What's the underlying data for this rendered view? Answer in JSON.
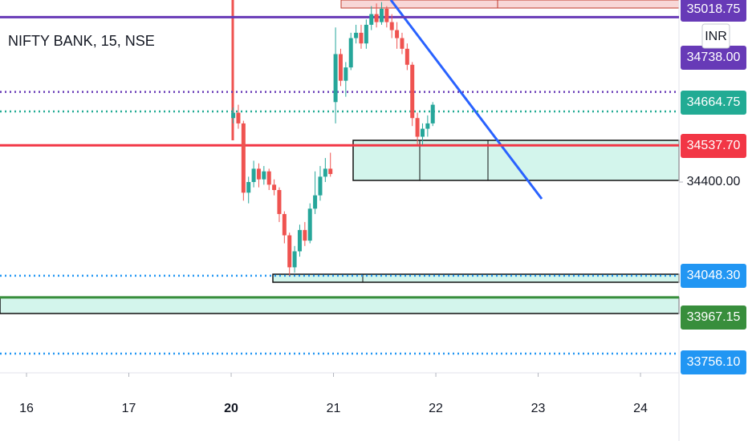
{
  "chart_data": {
    "type": "candlestick",
    "title": "NIFTY BANK, 15, NSE",
    "currency": "INR",
    "up_color": "#26a69a",
    "down_color": "#ef5350",
    "x": [
      2.02,
      2.07,
      2.12,
      2.17,
      2.22,
      2.27,
      2.32,
      2.37,
      2.42,
      2.47,
      2.52,
      2.57,
      2.62,
      2.67,
      2.72,
      2.77,
      2.82,
      2.87,
      2.92,
      2.97,
      3.02,
      3.07,
      3.12,
      3.17,
      3.22,
      3.27,
      3.32,
      3.37,
      3.42,
      3.47,
      3.52,
      3.57,
      3.62,
      3.67,
      3.72,
      3.77,
      3.82,
      3.87,
      3.92,
      3.97
    ],
    "open": [
      34640,
      34660,
      34620,
      34360,
      34400,
      34450,
      34410,
      34440,
      34390,
      34370,
      34280,
      34200,
      34080,
      34140,
      34220,
      34180,
      34300,
      34350,
      34420,
      34450,
      34700,
      34880,
      34780,
      34830,
      34940,
      34960,
      34920,
      34990,
      35030,
      35000,
      35050,
      35000,
      34970,
      34940,
      34900,
      34840,
      34640,
      34570,
      34600,
      34620
    ],
    "high": [
      34680,
      34690,
      34630,
      34420,
      34480,
      34470,
      34460,
      34450,
      34410,
      34380,
      34290,
      34210,
      34160,
      34240,
      34250,
      34320,
      34440,
      34460,
      34490,
      34510,
      34980,
      34900,
      34850,
      34960,
      34990,
      34990,
      35010,
      35060,
      35070,
      35075,
      35060,
      35030,
      35000,
      34960,
      34920,
      34850,
      34660,
      34620,
      34650,
      34700
    ],
    "low": [
      34620,
      34600,
      34330,
      34320,
      34380,
      34380,
      34390,
      34370,
      34350,
      34250,
      34170,
      34048,
      34060,
      34120,
      34160,
      34170,
      34280,
      34330,
      34400,
      34420,
      34620,
      34760,
      34720,
      34820,
      34920,
      34900,
      34900,
      34970,
      34980,
      34990,
      34980,
      34940,
      34900,
      34880,
      34820,
      34610,
      34540,
      34540,
      34570,
      34610
    ],
    "close": [
      34660,
      34620,
      34360,
      34400,
      34450,
      34410,
      34440,
      34390,
      34370,
      34280,
      34200,
      34080,
      34140,
      34220,
      34180,
      34300,
      34350,
      34420,
      34450,
      34430,
      34880,
      34780,
      34830,
      34940,
      34960,
      34920,
      34990,
      35030,
      35000,
      35050,
      35000,
      34970,
      34940,
      34900,
      34840,
      34640,
      34570,
      34600,
      34620,
      34690
    ],
    "xlim": [
      -0.259,
      6.376
    ],
    "ylim": [
      33684,
      35083
    ],
    "xticks": [
      {
        "value": 0,
        "label": "16"
      },
      {
        "value": 1,
        "label": "17"
      },
      {
        "value": 2,
        "label": "20"
      },
      {
        "value": 3,
        "label": "21"
      },
      {
        "value": 4,
        "label": "22"
      },
      {
        "value": 5,
        "label": "23"
      },
      {
        "value": 6,
        "label": "24"
      }
    ],
    "yticks": [
      {
        "value": 34400,
        "label": "34400.00"
      }
    ],
    "price_lines": [
      {
        "value": 35018.75,
        "label": "35018.75",
        "color": "#673ab7",
        "style": "solid"
      },
      {
        "value": 34738.0,
        "label": "34738.00",
        "color": "#673ab7",
        "style": "dotted"
      },
      {
        "value": 34664.75,
        "label": "34664.75",
        "color": "#22ab94",
        "style": "dotted"
      },
      {
        "value": 34537.7,
        "label": "34537.70",
        "color": "#f23645",
        "style": "solid"
      },
      {
        "value": 34048.3,
        "label": "34048.30",
        "color": "#2196f3",
        "style": "dotted"
      },
      {
        "value": 33967.15,
        "label": "33967.15",
        "color": "#388e3c",
        "style": "solid"
      },
      {
        "value": 33756.1,
        "label": "33756.10",
        "color": "#2196f3",
        "style": "dotted"
      }
    ]
  }
}
